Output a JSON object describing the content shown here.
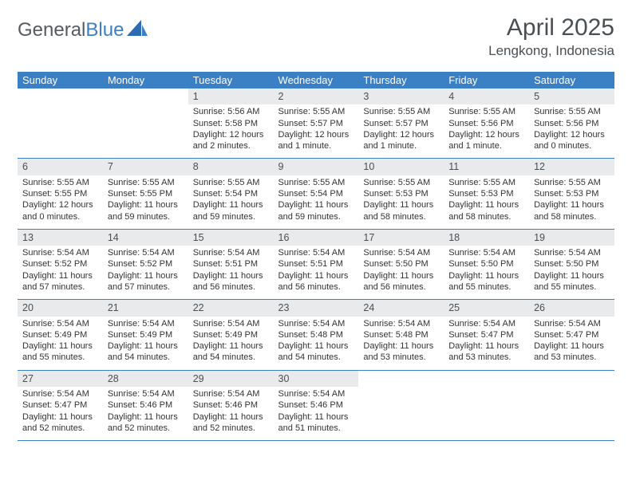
{
  "brand": {
    "name_part1": "General",
    "name_part2": "Blue"
  },
  "title": {
    "month": "April 2025",
    "location": "Lengkong, Indonesia"
  },
  "colors": {
    "header_bg": "#3b7fc4",
    "header_text": "#ffffff",
    "daynum_bg": "#e9eaeb",
    "text": "#333333",
    "title_text": "#4a4f54",
    "row_border": "#3b7fc4",
    "page_bg": "#ffffff"
  },
  "typography": {
    "month_title_pt": 30,
    "location_pt": 17,
    "dayheader_pt": 13,
    "daynum_pt": 12.5,
    "cell_pt": 11
  },
  "weekdays": [
    "Sunday",
    "Monday",
    "Tuesday",
    "Wednesday",
    "Thursday",
    "Friday",
    "Saturday"
  ],
  "first_weekday_index": 2,
  "days": [
    {
      "n": 1,
      "sunrise": "5:56 AM",
      "sunset": "5:58 PM",
      "daylight": "12 hours and 2 minutes."
    },
    {
      "n": 2,
      "sunrise": "5:55 AM",
      "sunset": "5:57 PM",
      "daylight": "12 hours and 1 minute."
    },
    {
      "n": 3,
      "sunrise": "5:55 AM",
      "sunset": "5:57 PM",
      "daylight": "12 hours and 1 minute."
    },
    {
      "n": 4,
      "sunrise": "5:55 AM",
      "sunset": "5:56 PM",
      "daylight": "12 hours and 1 minute."
    },
    {
      "n": 5,
      "sunrise": "5:55 AM",
      "sunset": "5:56 PM",
      "daylight": "12 hours and 0 minutes."
    },
    {
      "n": 6,
      "sunrise": "5:55 AM",
      "sunset": "5:55 PM",
      "daylight": "12 hours and 0 minutes."
    },
    {
      "n": 7,
      "sunrise": "5:55 AM",
      "sunset": "5:55 PM",
      "daylight": "11 hours and 59 minutes."
    },
    {
      "n": 8,
      "sunrise": "5:55 AM",
      "sunset": "5:54 PM",
      "daylight": "11 hours and 59 minutes."
    },
    {
      "n": 9,
      "sunrise": "5:55 AM",
      "sunset": "5:54 PM",
      "daylight": "11 hours and 59 minutes."
    },
    {
      "n": 10,
      "sunrise": "5:55 AM",
      "sunset": "5:53 PM",
      "daylight": "11 hours and 58 minutes."
    },
    {
      "n": 11,
      "sunrise": "5:55 AM",
      "sunset": "5:53 PM",
      "daylight": "11 hours and 58 minutes."
    },
    {
      "n": 12,
      "sunrise": "5:55 AM",
      "sunset": "5:53 PM",
      "daylight": "11 hours and 58 minutes."
    },
    {
      "n": 13,
      "sunrise": "5:54 AM",
      "sunset": "5:52 PM",
      "daylight": "11 hours and 57 minutes."
    },
    {
      "n": 14,
      "sunrise": "5:54 AM",
      "sunset": "5:52 PM",
      "daylight": "11 hours and 57 minutes."
    },
    {
      "n": 15,
      "sunrise": "5:54 AM",
      "sunset": "5:51 PM",
      "daylight": "11 hours and 56 minutes."
    },
    {
      "n": 16,
      "sunrise": "5:54 AM",
      "sunset": "5:51 PM",
      "daylight": "11 hours and 56 minutes."
    },
    {
      "n": 17,
      "sunrise": "5:54 AM",
      "sunset": "5:50 PM",
      "daylight": "11 hours and 56 minutes."
    },
    {
      "n": 18,
      "sunrise": "5:54 AM",
      "sunset": "5:50 PM",
      "daylight": "11 hours and 55 minutes."
    },
    {
      "n": 19,
      "sunrise": "5:54 AM",
      "sunset": "5:50 PM",
      "daylight": "11 hours and 55 minutes."
    },
    {
      "n": 20,
      "sunrise": "5:54 AM",
      "sunset": "5:49 PM",
      "daylight": "11 hours and 55 minutes."
    },
    {
      "n": 21,
      "sunrise": "5:54 AM",
      "sunset": "5:49 PM",
      "daylight": "11 hours and 54 minutes."
    },
    {
      "n": 22,
      "sunrise": "5:54 AM",
      "sunset": "5:49 PM",
      "daylight": "11 hours and 54 minutes."
    },
    {
      "n": 23,
      "sunrise": "5:54 AM",
      "sunset": "5:48 PM",
      "daylight": "11 hours and 54 minutes."
    },
    {
      "n": 24,
      "sunrise": "5:54 AM",
      "sunset": "5:48 PM",
      "daylight": "11 hours and 53 minutes."
    },
    {
      "n": 25,
      "sunrise": "5:54 AM",
      "sunset": "5:47 PM",
      "daylight": "11 hours and 53 minutes."
    },
    {
      "n": 26,
      "sunrise": "5:54 AM",
      "sunset": "5:47 PM",
      "daylight": "11 hours and 53 minutes."
    },
    {
      "n": 27,
      "sunrise": "5:54 AM",
      "sunset": "5:47 PM",
      "daylight": "11 hours and 52 minutes."
    },
    {
      "n": 28,
      "sunrise": "5:54 AM",
      "sunset": "5:46 PM",
      "daylight": "11 hours and 52 minutes."
    },
    {
      "n": 29,
      "sunrise": "5:54 AM",
      "sunset": "5:46 PM",
      "daylight": "11 hours and 52 minutes."
    },
    {
      "n": 30,
      "sunrise": "5:54 AM",
      "sunset": "5:46 PM",
      "daylight": "11 hours and 51 minutes."
    }
  ],
  "labels": {
    "sunrise": "Sunrise:",
    "sunset": "Sunset:",
    "daylight": "Daylight:"
  }
}
